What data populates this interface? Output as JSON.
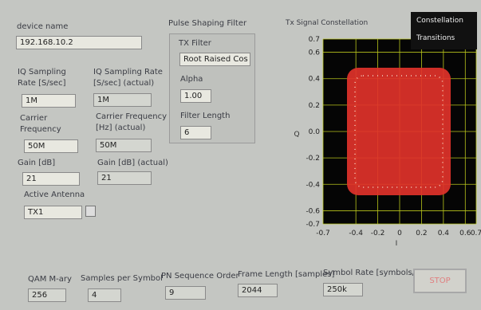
{
  "device_name": {
    "label": "device name",
    "value": "192.168.10.2"
  },
  "iq_rate": {
    "label": "IQ Sampling Rate [S/sec]",
    "value": "1M"
  },
  "iq_rate_actual": {
    "label": "IQ Sampling Rate [S/sec] (actual)",
    "value": "1M"
  },
  "carrier": {
    "label": "Carrier Frequency",
    "value": "50M"
  },
  "carrier_actual": {
    "label": "Carrier Frequency [Hz] (actual)",
    "value": "50M"
  },
  "gain": {
    "label": "Gain [dB]",
    "value": "21"
  },
  "gain_actual": {
    "label": "Gain [dB] (actual)",
    "value": "21"
  },
  "antenna": {
    "label": "Active Antenna",
    "value": "TX1"
  },
  "filter": {
    "title": "Pulse Shaping Filter",
    "tx_filter": {
      "label": "TX Filter",
      "value": "Root Raised Cos"
    },
    "alpha": {
      "label": "Alpha",
      "value": "1.00"
    },
    "filter_length": {
      "label": "Filter Length",
      "value": "6"
    }
  },
  "graph": {
    "title": "Tx Signal Constellation",
    "xlabel": "I",
    "ylabel": "Q",
    "legend": [
      "Constellation",
      "Transitions"
    ],
    "xlim": [
      -0.7,
      0.7
    ],
    "ylim": [
      -0.7,
      0.7
    ],
    "xticks": [
      -0.7,
      -0.4,
      -0.2,
      0,
      0.2,
      0.4,
      0.6,
      0.7
    ],
    "yticks": [
      0.7,
      0.6,
      0.4,
      0.2,
      {
        "value": 0,
        "label": "0.0"
      },
      -0.2,
      -0.4,
      -0.6,
      -0.7
    ]
  },
  "bottom": {
    "qam": {
      "label": "QAM M-ary",
      "value": "256"
    },
    "sps": {
      "label": "Samples per Symbol",
      "value": "4"
    },
    "pn": {
      "label": "PN Sequence Order",
      "value": "9"
    },
    "frame_length": {
      "label": "Frame Length [samples]",
      "value": "2044"
    },
    "symbol_rate": {
      "label": "Symbol Rate [symbols/sec]",
      "value": "250k"
    },
    "stop": "STOP"
  }
}
